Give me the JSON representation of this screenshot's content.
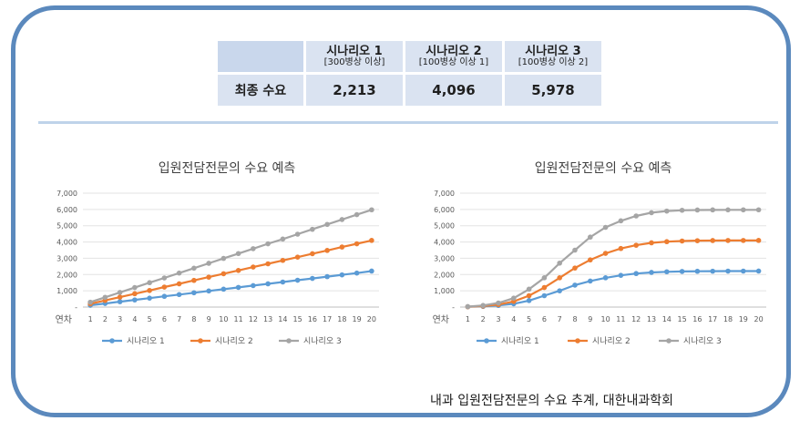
{
  "summary": {
    "headers": [
      {
        "title": "시나리오 1",
        "sub": "[300병상 이상]"
      },
      {
        "title": "시나리오 2",
        "sub": "[100병상 이상 1]"
      },
      {
        "title": "시나리오 3",
        "sub": "[100병상 이상 2]"
      }
    ],
    "row_label": "최종 수요",
    "values": [
      "2,213",
      "4,096",
      "5,978"
    ]
  },
  "credit": "내과 입원전담전문의 수요 추계, 대한내과학회",
  "colors": {
    "series1": "#5b9bd5",
    "series2": "#ed7d31",
    "series3": "#a5a5a5",
    "frame": "#5b89bd"
  },
  "chart_data": [
    {
      "type": "line",
      "title": "입원전담전문의 수요 예측",
      "xlabel": "연차",
      "x": [
        1,
        2,
        3,
        4,
        5,
        6,
        7,
        8,
        9,
        10,
        11,
        12,
        13,
        14,
        15,
        16,
        17,
        18,
        19,
        20
      ],
      "ylim": [
        0,
        7000
      ],
      "yticks": [
        "-",
        "1,000",
        "2,000",
        "3,000",
        "4,000",
        "5,000",
        "6,000",
        "7,000"
      ],
      "grid": true,
      "legend": "bottom",
      "series": [
        {
          "name": "시나리오 1",
          "values": [
            110,
            220,
            330,
            440,
            550,
            660,
            770,
            880,
            990,
            1100,
            1210,
            1320,
            1430,
            1540,
            1650,
            1760,
            1870,
            1980,
            2090,
            2213
          ]
        },
        {
          "name": "시나리오 2",
          "values": [
            200,
            410,
            610,
            820,
            1020,
            1230,
            1430,
            1640,
            1840,
            2050,
            2250,
            2460,
            2660,
            2870,
            3070,
            3280,
            3480,
            3690,
            3890,
            4096
          ]
        },
        {
          "name": "시나리오 3",
          "values": [
            300,
            600,
            900,
            1200,
            1500,
            1790,
            2090,
            2390,
            2690,
            2990,
            3290,
            3590,
            3890,
            4180,
            4480,
            4780,
            5080,
            5380,
            5680,
            5978
          ]
        }
      ]
    },
    {
      "type": "line",
      "title": "입원전담전문의 수요 예측",
      "xlabel": "연차",
      "x": [
        1,
        2,
        3,
        4,
        5,
        6,
        7,
        8,
        9,
        10,
        11,
        12,
        13,
        14,
        15,
        16,
        17,
        18,
        19,
        20
      ],
      "ylim": [
        0,
        7000
      ],
      "yticks": [
        "-",
        "1,000",
        "2,000",
        "3,000",
        "4,000",
        "5,000",
        "6,000",
        "7,000"
      ],
      "grid": true,
      "legend": "bottom",
      "series": [
        {
          "name": "시나리오 1",
          "values": [
            20,
            40,
            100,
            200,
            400,
            700,
            1000,
            1350,
            1600,
            1800,
            1950,
            2060,
            2130,
            2170,
            2190,
            2200,
            2205,
            2210,
            2212,
            2213
          ]
        },
        {
          "name": "시나리오 2",
          "values": [
            20,
            60,
            150,
            350,
            700,
            1200,
            1800,
            2400,
            2900,
            3300,
            3600,
            3800,
            3950,
            4020,
            4060,
            4080,
            4090,
            4093,
            4095,
            4096
          ]
        },
        {
          "name": "시나리오 3",
          "values": [
            30,
            100,
            250,
            550,
            1100,
            1800,
            2700,
            3500,
            4300,
            4900,
            5300,
            5600,
            5800,
            5900,
            5950,
            5965,
            5972,
            5975,
            5977,
            5978
          ]
        }
      ]
    }
  ]
}
